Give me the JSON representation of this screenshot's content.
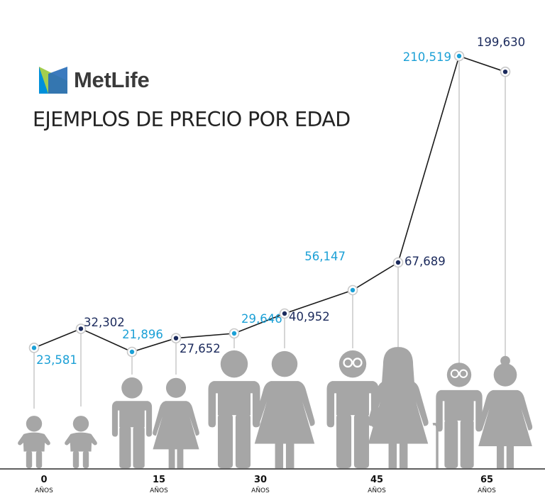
{
  "brand": {
    "name": "MetLife",
    "logo_icon": "metlife-logo-icon",
    "logo_colors": [
      "#0090da",
      "#a4ce4e",
      "#2a6fb8"
    ]
  },
  "chart_data": {
    "type": "line",
    "title": "EJEMPLOS DE PRECIO POR EDAD",
    "xlabel": "",
    "ylabel": "",
    "age_unit": "AÑOS",
    "age_groups": [
      "0",
      "15",
      "30",
      "45",
      "65"
    ],
    "series": [
      {
        "name": "Hombre",
        "color": "#1ba0d6",
        "label_side": "left",
        "values": [
          23581,
          21896,
          29646,
          56147,
          210519
        ],
        "labels": [
          "23,581",
          "21,896",
          "29,646",
          "56,147",
          "210,519"
        ]
      },
      {
        "name": "Mujer",
        "color": "#1b2a5c",
        "label_side": "right",
        "values": [
          32302,
          27652,
          40952,
          67689,
          199630
        ],
        "labels": [
          "32,302",
          "27,652",
          "40,952",
          "67,689",
          "199,630"
        ]
      }
    ],
    "line_color": "#1a1a1a",
    "figure_color": "#a6a6a6",
    "stem_color": "#cccccc",
    "grid": false,
    "legend": "none"
  }
}
